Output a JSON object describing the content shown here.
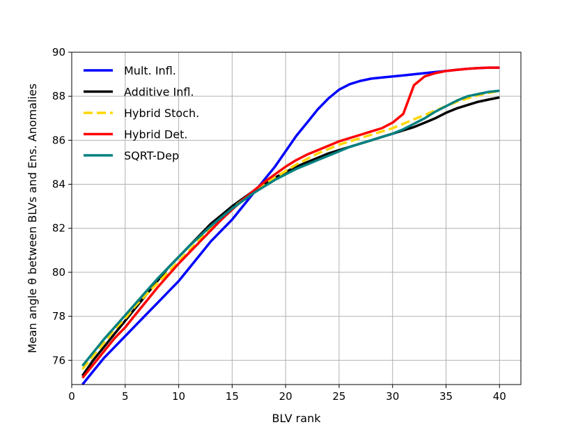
{
  "chart_data": {
    "type": "line",
    "title": "",
    "xlabel": "BLV rank",
    "ylabel": "Mean angle θ between BLVs and Ens. Anomalies",
    "xlim": [
      0,
      42
    ],
    "ylim": [
      74.9,
      90
    ],
    "xticks": [
      0,
      5,
      10,
      15,
      20,
      25,
      30,
      35,
      40
    ],
    "yticks": [
      76,
      78,
      80,
      82,
      84,
      86,
      88,
      90
    ],
    "grid": true,
    "legend_position": "top-left",
    "series": [
      {
        "name": "Mult. Infl.",
        "color": "#0000ff",
        "dash": "solid",
        "x": [
          1,
          2,
          3,
          4,
          5,
          6,
          7,
          8,
          9,
          10,
          11,
          12,
          13,
          14,
          15,
          16,
          17,
          18,
          19,
          20,
          21,
          22,
          23,
          24,
          25,
          26,
          27,
          28,
          29,
          30,
          31,
          32,
          33,
          34,
          35,
          36,
          37,
          38,
          39,
          40
        ],
        "y": [
          74.9,
          75.5,
          76.1,
          76.6,
          77.1,
          77.6,
          78.1,
          78.6,
          79.1,
          79.6,
          80.2,
          80.8,
          81.4,
          81.9,
          82.4,
          83.0,
          83.6,
          84.2,
          84.8,
          85.5,
          86.2,
          86.8,
          87.4,
          87.9,
          88.3,
          88.55,
          88.7,
          88.8,
          88.85,
          88.9,
          88.95,
          89.0,
          89.05,
          89.1,
          89.15,
          89.2,
          89.25,
          89.28,
          89.3,
          89.3
        ]
      },
      {
        "name": "Additive Infl.",
        "color": "#000000",
        "dash": "solid",
        "x": [
          1,
          2,
          3,
          4,
          5,
          6,
          7,
          8,
          9,
          10,
          11,
          12,
          13,
          14,
          15,
          16,
          17,
          18,
          19,
          20,
          21,
          22,
          23,
          24,
          25,
          26,
          27,
          28,
          29,
          30,
          31,
          32,
          33,
          34,
          35,
          36,
          37,
          38,
          39,
          40
        ],
        "y": [
          75.3,
          76.0,
          76.6,
          77.2,
          77.8,
          78.4,
          79.0,
          79.6,
          80.2,
          80.7,
          81.2,
          81.7,
          82.2,
          82.6,
          83.0,
          83.35,
          83.7,
          84.0,
          84.3,
          84.55,
          84.8,
          85.0,
          85.2,
          85.4,
          85.55,
          85.7,
          85.85,
          86.0,
          86.15,
          86.3,
          86.45,
          86.6,
          86.8,
          87.0,
          87.25,
          87.45,
          87.6,
          87.75,
          87.85,
          87.95
        ]
      },
      {
        "name": "Hybrid Stoch.",
        "color": "#ffd700",
        "dash": "dashed",
        "x": [
          1,
          2,
          3,
          4,
          5,
          6,
          7,
          8,
          9,
          10,
          11,
          12,
          13,
          14,
          15,
          16,
          17,
          18,
          19,
          20,
          21,
          22,
          23,
          24,
          25,
          26,
          27,
          28,
          29,
          30,
          31,
          32,
          33,
          34,
          35,
          36,
          37,
          38,
          39,
          40
        ],
        "y": [
          75.6,
          76.2,
          76.8,
          77.4,
          77.9,
          78.5,
          79.0,
          79.5,
          80.0,
          80.5,
          81.0,
          81.5,
          82.0,
          82.45,
          82.9,
          83.3,
          83.65,
          84.0,
          84.3,
          84.6,
          84.9,
          85.15,
          85.4,
          85.6,
          85.8,
          85.95,
          86.1,
          86.25,
          86.4,
          86.55,
          86.75,
          86.95,
          87.15,
          87.35,
          87.55,
          87.75,
          87.9,
          88.05,
          88.15,
          88.25
        ]
      },
      {
        "name": "Hybrid Det.",
        "color": "#ff0000",
        "dash": "solid",
        "x": [
          1,
          2,
          3,
          4,
          5,
          6,
          7,
          8,
          9,
          10,
          11,
          12,
          13,
          14,
          15,
          16,
          17,
          18,
          19,
          20,
          21,
          22,
          23,
          24,
          25,
          26,
          27,
          28,
          29,
          30,
          31,
          32,
          33,
          34,
          35,
          36,
          37,
          38,
          39,
          40
        ],
        "y": [
          75.2,
          75.8,
          76.4,
          77.0,
          77.5,
          78.1,
          78.7,
          79.3,
          79.85,
          80.4,
          80.9,
          81.4,
          81.9,
          82.4,
          82.85,
          83.3,
          83.7,
          84.1,
          84.45,
          84.8,
          85.1,
          85.35,
          85.55,
          85.75,
          85.95,
          86.1,
          86.25,
          86.4,
          86.55,
          86.8,
          87.2,
          88.5,
          88.9,
          89.05,
          89.15,
          89.2,
          89.25,
          89.28,
          89.3,
          89.3
        ]
      },
      {
        "name": "SQRT-Dep",
        "color": "#008080",
        "dash": "solid",
        "x": [
          1,
          2,
          3,
          4,
          5,
          6,
          7,
          8,
          9,
          10,
          11,
          12,
          13,
          14,
          15,
          16,
          17,
          18,
          19,
          20,
          21,
          22,
          23,
          24,
          25,
          26,
          27,
          28,
          29,
          30,
          31,
          32,
          33,
          34,
          35,
          36,
          37,
          38,
          39,
          40
        ],
        "y": [
          75.75,
          76.35,
          76.95,
          77.5,
          78.05,
          78.6,
          79.15,
          79.7,
          80.2,
          80.7,
          81.2,
          81.65,
          82.1,
          82.5,
          82.9,
          83.25,
          83.6,
          83.9,
          84.2,
          84.45,
          84.7,
          84.9,
          85.1,
          85.3,
          85.5,
          85.7,
          85.85,
          86.0,
          86.15,
          86.3,
          86.5,
          86.75,
          87.0,
          87.3,
          87.55,
          87.8,
          88.0,
          88.1,
          88.2,
          88.25
        ]
      }
    ]
  }
}
